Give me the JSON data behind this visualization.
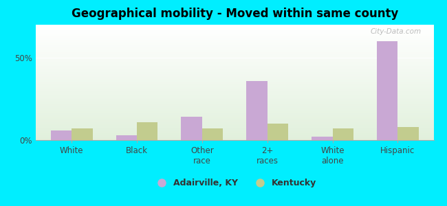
{
  "title": "Geographical mobility - Moved within same county",
  "categories": [
    "White",
    "Black",
    "Other\nrace",
    "2+\nraces",
    "White\nalone",
    "Hispanic"
  ],
  "adairville_values": [
    6,
    3,
    14,
    36,
    2,
    60
  ],
  "kentucky_values": [
    7,
    11,
    7,
    10,
    7,
    8
  ],
  "adairville_color": "#c9a8d4",
  "kentucky_color": "#c2cc8e",
  "background_color": "#00eeff",
  "ylim": [
    0,
    70
  ],
  "yticks": [
    0,
    50
  ],
  "bar_width": 0.32,
  "legend_adairville": "Adairville, KY",
  "legend_kentucky": "Kentucky",
  "watermark": "City-Data.com",
  "title_fontsize": 12,
  "tick_fontsize": 8.5
}
